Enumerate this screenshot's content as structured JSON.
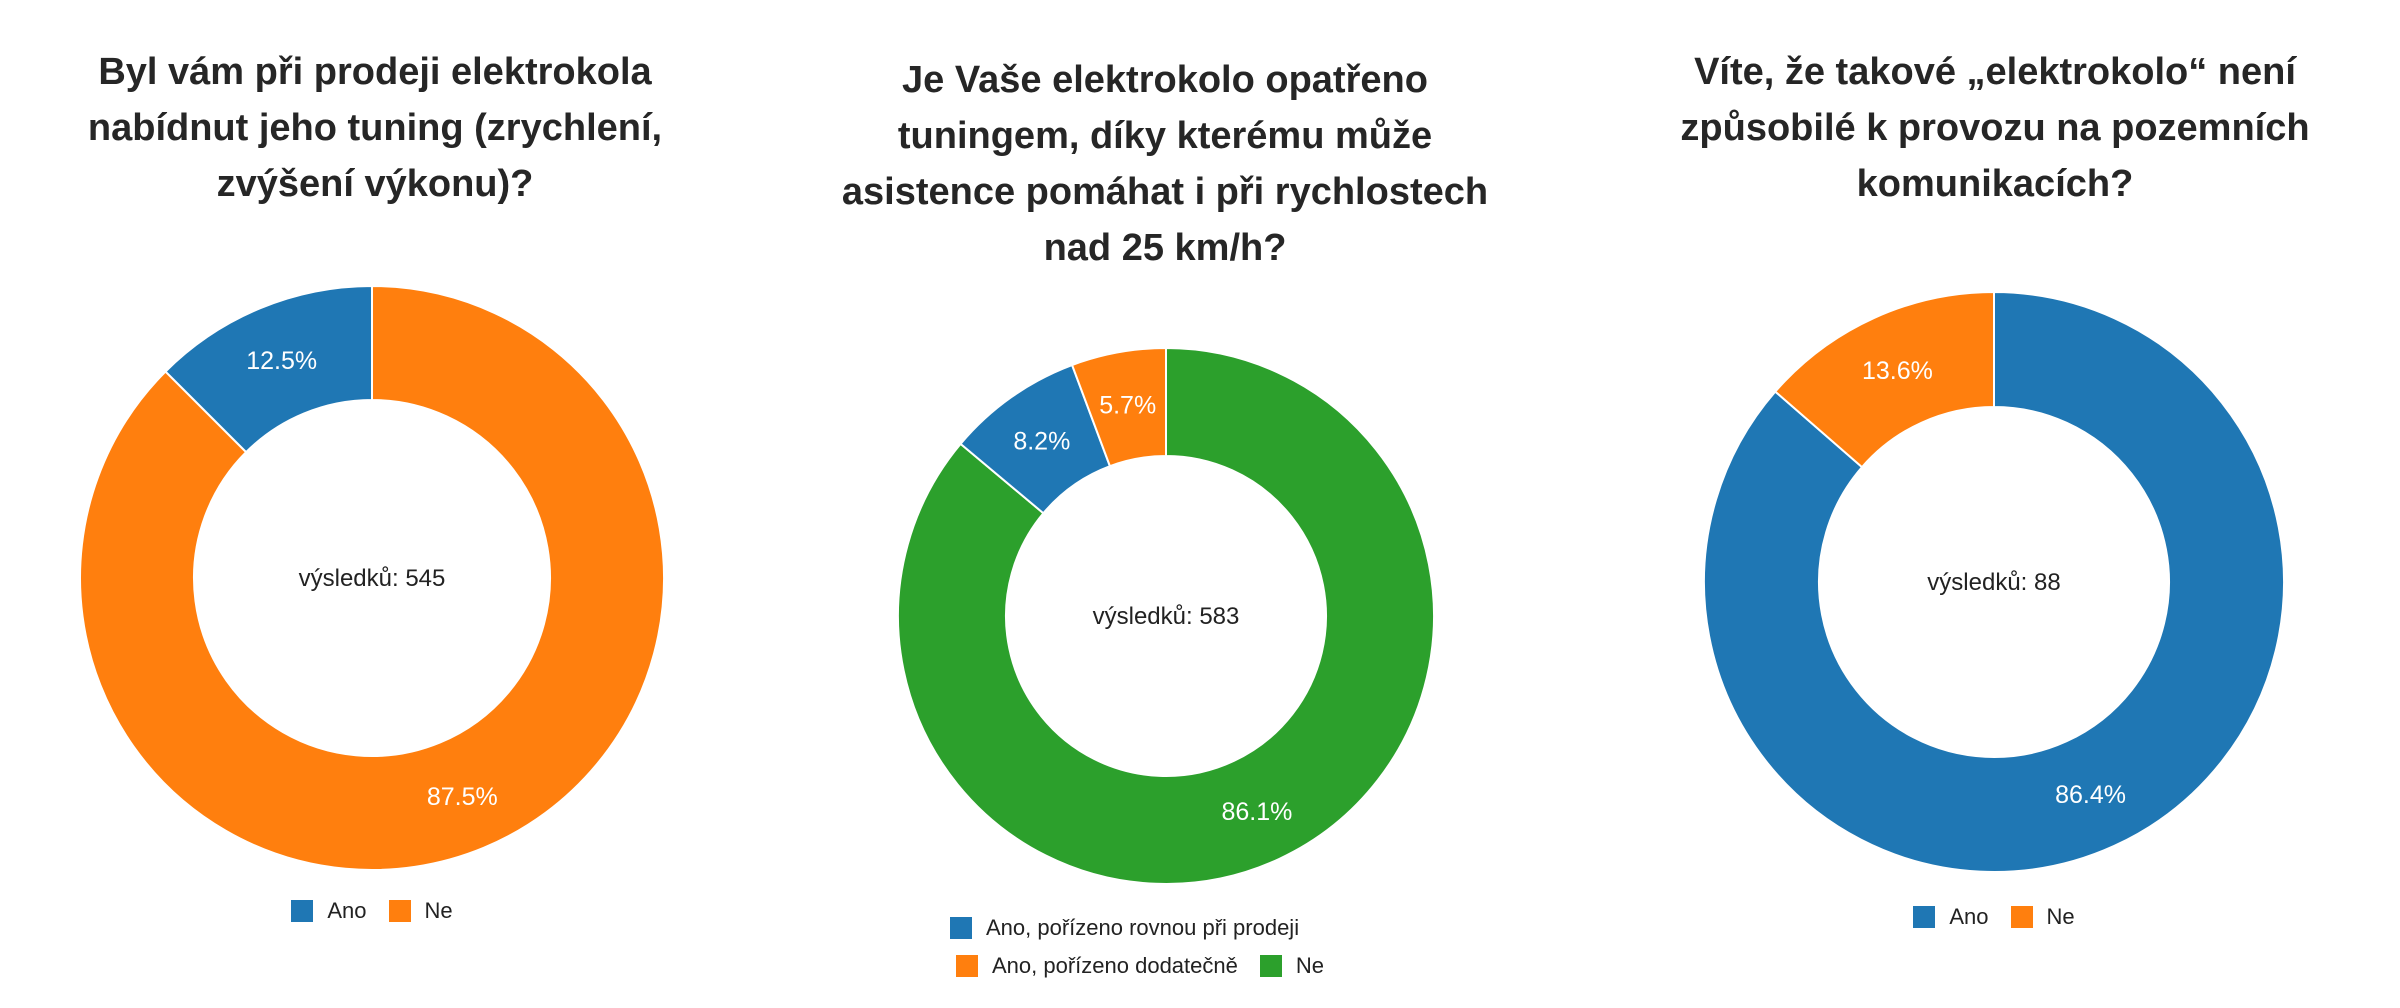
{
  "chart_data": [
    {
      "type": "pie",
      "variant": "donut",
      "title": "Byl vám při prodeji elektrokola\nnabídnut jeho tuning (zrychlení,\nzvýšení výkonu)?",
      "center_label": "výsledků: 545",
      "total": 545,
      "categories": [
        "Ano",
        "Ne"
      ],
      "values": [
        12.5,
        87.5
      ],
      "value_labels": [
        "12.5%",
        "87.5%"
      ],
      "colors": [
        "#1f77b4",
        "#ff7f0e"
      ],
      "legend": [
        {
          "label": "Ano",
          "color": "#1f77b4"
        },
        {
          "label": "Ne",
          "color": "#ff7f0e"
        }
      ],
      "legend_position": "bottom"
    },
    {
      "type": "pie",
      "variant": "donut",
      "title": "Je Vaše elektrokolo opatřeno\ntuningem, díky kterému může\nasistence pomáhat i při rychlostech\nnad 25 km/h?",
      "center_label": "výsledků: 583",
      "total": 583,
      "categories": [
        "Ano, pořízeno rovnou při prodeji",
        "Ano, pořízeno dodatečně",
        "Ne"
      ],
      "values": [
        8.2,
        5.7,
        86.1
      ],
      "value_labels": [
        "8.2%",
        "5.7%",
        "86.1%"
      ],
      "colors": [
        "#1f77b4",
        "#ff7f0e",
        "#2ca02c"
      ],
      "legend": [
        {
          "label": "Ano, pořízeno rovnou při prodeji",
          "color": "#1f77b4"
        },
        {
          "label": "Ano, pořízeno dodatečně",
          "color": "#ff7f0e"
        },
        {
          "label": "Ne",
          "color": "#2ca02c"
        }
      ],
      "legend_position": "bottom"
    },
    {
      "type": "pie",
      "variant": "donut",
      "title": "Víte, že takové „elektrokolo“ není\nzpůsobilé k provozu na pozemních\nkomunikacích?",
      "center_label": "výsledků: 88",
      "total": 88,
      "categories": [
        "Ano",
        "Ne"
      ],
      "values": [
        86.4,
        13.6
      ],
      "value_labels": [
        "86.4%",
        "13.6%"
      ],
      "colors": [
        "#1f77b4",
        "#ff7f0e"
      ],
      "legend": [
        {
          "label": "Ano",
          "color": "#1f77b4"
        },
        {
          "label": "Ne",
          "color": "#ff7f0e"
        }
      ],
      "legend_position": "bottom"
    }
  ]
}
